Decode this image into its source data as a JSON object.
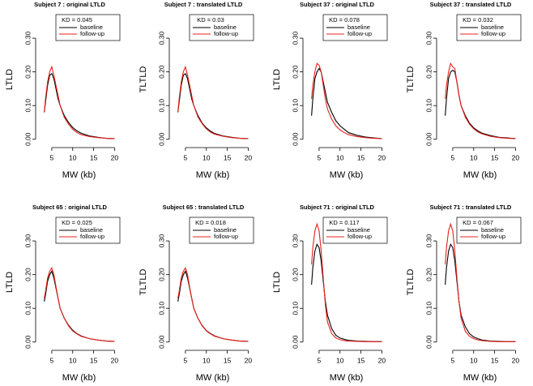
{
  "chart_data": [
    {
      "type": "line",
      "title": "Subject  7 :  original LTLD",
      "xlabel": "MW (kb)",
      "ylabel": "LTLD",
      "annotation": "KD = 0.045",
      "x": [
        3.2,
        3.5,
        4,
        4.5,
        5,
        5.5,
        6,
        6.5,
        7,
        8,
        9,
        10,
        11,
        12,
        14,
        16,
        18,
        20
      ],
      "series": [
        {
          "name": "baseline",
          "color": "#000000",
          "values": [
            0.08,
            0.11,
            0.16,
            0.19,
            0.195,
            0.18,
            0.15,
            0.12,
            0.1,
            0.07,
            0.05,
            0.035,
            0.025,
            0.018,
            0.01,
            0.006,
            0.003,
            0.002
          ]
        },
        {
          "name": "follow-up",
          "color": "#e8201c",
          "values": [
            0.08,
            0.12,
            0.17,
            0.2,
            0.215,
            0.19,
            0.16,
            0.13,
            0.1,
            0.065,
            0.045,
            0.03,
            0.02,
            0.014,
            0.008,
            0.005,
            0.003,
            0.002
          ]
        }
      ],
      "xlim": [
        2.5,
        20.5
      ],
      "ylim": [
        -0.015,
        0.37
      ],
      "xticks": [
        5,
        10,
        15,
        20
      ],
      "yticks": [
        {
          "value": 0,
          "label": "0.00"
        },
        {
          "value": 0.1,
          "label": "0.10"
        },
        {
          "value": 0.2,
          "label": "0.20"
        },
        {
          "value": 0.3,
          "label": "0.30"
        }
      ]
    },
    {
      "type": "line",
      "title": "Subject  7 :  translated LTLD",
      "xlabel": "MW (kb)",
      "ylabel": "TLTLD",
      "annotation": "KD = 0.03",
      "x": [
        3.2,
        3.5,
        4,
        4.5,
        5,
        5.5,
        6,
        6.5,
        7,
        8,
        9,
        10,
        11,
        12,
        14,
        16,
        18,
        20
      ],
      "series": [
        {
          "name": "baseline",
          "color": "#000000",
          "values": [
            0.08,
            0.11,
            0.16,
            0.19,
            0.195,
            0.18,
            0.15,
            0.12,
            0.1,
            0.07,
            0.048,
            0.034,
            0.024,
            0.017,
            0.01,
            0.006,
            0.003,
            0.002
          ]
        },
        {
          "name": "follow-up",
          "color": "#e8201c",
          "values": [
            0.08,
            0.12,
            0.17,
            0.2,
            0.215,
            0.19,
            0.16,
            0.13,
            0.1,
            0.066,
            0.046,
            0.031,
            0.021,
            0.015,
            0.009,
            0.005,
            0.003,
            0.002
          ]
        }
      ],
      "xlim": [
        2.5,
        20.5
      ],
      "ylim": [
        -0.015,
        0.37
      ],
      "xticks": [
        5,
        10,
        15,
        20
      ],
      "yticks": [
        {
          "value": 0,
          "label": "0.00"
        },
        {
          "value": 0.1,
          "label": "0.10"
        },
        {
          "value": 0.2,
          "label": "0.20"
        },
        {
          "value": 0.3,
          "label": "0.30"
        }
      ]
    },
    {
      "type": "line",
      "title": "Subject  37 :  original LTLD",
      "xlabel": "MW (kb)",
      "ylabel": "LTLD",
      "annotation": "KD = 0.078",
      "x": [
        3.2,
        3.5,
        4,
        4.5,
        5,
        5.5,
        6,
        6.5,
        7,
        8,
        9,
        10,
        11,
        12,
        14,
        16,
        18,
        20
      ],
      "series": [
        {
          "name": "baseline",
          "color": "#000000",
          "values": [
            0.07,
            0.12,
            0.18,
            0.2,
            0.21,
            0.2,
            0.17,
            0.14,
            0.11,
            0.08,
            0.055,
            0.04,
            0.03,
            0.02,
            0.012,
            0.007,
            0.004,
            0.002
          ]
        },
        {
          "name": "follow-up",
          "color": "#e8201c",
          "values": [
            0.12,
            0.16,
            0.2,
            0.225,
            0.22,
            0.2,
            0.16,
            0.12,
            0.09,
            0.06,
            0.04,
            0.028,
            0.02,
            0.014,
            0.008,
            0.005,
            0.003,
            0.002
          ]
        }
      ],
      "xlim": [
        2.5,
        20.5
      ],
      "ylim": [
        -0.015,
        0.37
      ],
      "xticks": [
        5,
        10,
        15,
        20
      ],
      "yticks": [
        {
          "value": 0,
          "label": "0.00"
        },
        {
          "value": 0.1,
          "label": "0.10"
        },
        {
          "value": 0.2,
          "label": "0.20"
        },
        {
          "value": 0.3,
          "label": "0.30"
        }
      ]
    },
    {
      "type": "line",
      "title": "Subject  37 :  translated LTLD",
      "xlabel": "MW (kb)",
      "ylabel": "TLTLD",
      "annotation": "KD = 0.032",
      "x": [
        3.2,
        3.5,
        4,
        4.5,
        5,
        5.5,
        6,
        6.5,
        7,
        8,
        9,
        10,
        11,
        12,
        14,
        16,
        18,
        20
      ],
      "series": [
        {
          "name": "baseline",
          "color": "#000000",
          "values": [
            0.07,
            0.12,
            0.18,
            0.2,
            0.205,
            0.2,
            0.17,
            0.13,
            0.1,
            0.07,
            0.048,
            0.034,
            0.025,
            0.018,
            0.011,
            0.006,
            0.004,
            0.002
          ]
        },
        {
          "name": "follow-up",
          "color": "#e8201c",
          "values": [
            0.12,
            0.16,
            0.2,
            0.225,
            0.215,
            0.21,
            0.17,
            0.13,
            0.1,
            0.066,
            0.045,
            0.031,
            0.022,
            0.016,
            0.009,
            0.005,
            0.003,
            0.002
          ]
        }
      ],
      "xlim": [
        2.5,
        20.5
      ],
      "ylim": [
        -0.015,
        0.37
      ],
      "xticks": [
        5,
        10,
        15,
        20
      ],
      "yticks": [
        {
          "value": 0,
          "label": "0.00"
        },
        {
          "value": 0.1,
          "label": "0.10"
        },
        {
          "value": 0.2,
          "label": "0.20"
        },
        {
          "value": 0.3,
          "label": "0.30"
        }
      ]
    },
    {
      "type": "line",
      "title": "Subject  65 :  original LTLD",
      "xlabel": "MW (kb)",
      "ylabel": "LTLD",
      "annotation": "KD = 0.025",
      "x": [
        3.2,
        3.5,
        4,
        4.5,
        5,
        5.5,
        6,
        6.5,
        7,
        8,
        9,
        10,
        11,
        12,
        14,
        16,
        18,
        20
      ],
      "series": [
        {
          "name": "baseline",
          "color": "#000000",
          "values": [
            0.12,
            0.14,
            0.18,
            0.2,
            0.21,
            0.19,
            0.16,
            0.13,
            0.1,
            0.07,
            0.05,
            0.035,
            0.025,
            0.018,
            0.01,
            0.006,
            0.003,
            0.002
          ]
        },
        {
          "name": "follow-up",
          "color": "#e8201c",
          "values": [
            0.13,
            0.15,
            0.19,
            0.21,
            0.22,
            0.2,
            0.165,
            0.13,
            0.1,
            0.07,
            0.048,
            0.033,
            0.024,
            0.017,
            0.01,
            0.006,
            0.003,
            0.002
          ]
        }
      ],
      "xlim": [
        2.5,
        20.5
      ],
      "ylim": [
        -0.015,
        0.37
      ],
      "xticks": [
        5,
        10,
        15,
        20
      ],
      "yticks": [
        {
          "value": 0,
          "label": "0.00"
        },
        {
          "value": 0.1,
          "label": "0.10"
        },
        {
          "value": 0.2,
          "label": "0.20"
        },
        {
          "value": 0.3,
          "label": "0.30"
        }
      ]
    },
    {
      "type": "line",
      "title": "Subject  65 :  translated LTLD",
      "xlabel": "MW (kb)",
      "ylabel": "TLTLD",
      "annotation": "KD = 0.018",
      "x": [
        3.2,
        3.5,
        4,
        4.5,
        5,
        5.5,
        6,
        6.5,
        7,
        8,
        9,
        10,
        11,
        12,
        14,
        16,
        18,
        20
      ],
      "series": [
        {
          "name": "baseline",
          "color": "#000000",
          "values": [
            0.12,
            0.14,
            0.18,
            0.2,
            0.21,
            0.19,
            0.16,
            0.13,
            0.1,
            0.07,
            0.049,
            0.034,
            0.025,
            0.018,
            0.01,
            0.006,
            0.003,
            0.002
          ]
        },
        {
          "name": "follow-up",
          "color": "#e8201c",
          "values": [
            0.13,
            0.15,
            0.19,
            0.21,
            0.22,
            0.2,
            0.163,
            0.13,
            0.1,
            0.07,
            0.048,
            0.033,
            0.024,
            0.017,
            0.01,
            0.006,
            0.003,
            0.002
          ]
        }
      ],
      "xlim": [
        2.5,
        20.5
      ],
      "ylim": [
        -0.015,
        0.37
      ],
      "xticks": [
        5,
        10,
        15,
        20
      ],
      "yticks": [
        {
          "value": 0,
          "label": "0.00"
        },
        {
          "value": 0.1,
          "label": "0.10"
        },
        {
          "value": 0.2,
          "label": "0.20"
        },
        {
          "value": 0.3,
          "label": "0.30"
        }
      ]
    },
    {
      "type": "line",
      "title": "Subject  71 :  original LTLD",
      "xlabel": "MW (kb)",
      "ylabel": "LTLD",
      "annotation": "KD = 0.117",
      "x": [
        3.2,
        3.5,
        4,
        4.5,
        5,
        5.5,
        6,
        6.5,
        7,
        8,
        9,
        10,
        11,
        12,
        14,
        16,
        18,
        20
      ],
      "series": [
        {
          "name": "baseline",
          "color": "#000000",
          "values": [
            0.17,
            0.22,
            0.27,
            0.29,
            0.28,
            0.24,
            0.18,
            0.12,
            0.08,
            0.04,
            0.02,
            0.012,
            0.008,
            0.005,
            0.003,
            0.002,
            0.001,
            0.001
          ]
        },
        {
          "name": "follow-up",
          "color": "#e8201c",
          "values": [
            0.23,
            0.28,
            0.33,
            0.35,
            0.33,
            0.27,
            0.19,
            0.11,
            0.06,
            0.025,
            0.012,
            0.007,
            0.004,
            0.003,
            0.002,
            0.001,
            0.001,
            0.001
          ]
        }
      ],
      "xlim": [
        2.5,
        20.5
      ],
      "ylim": [
        -0.015,
        0.37
      ],
      "xticks": [
        5,
        10,
        15,
        20
      ],
      "yticks": [
        {
          "value": 0,
          "label": "0.00"
        },
        {
          "value": 0.1,
          "label": "0.10"
        },
        {
          "value": 0.2,
          "label": "0.20"
        },
        {
          "value": 0.3,
          "label": "0.30"
        }
      ]
    },
    {
      "type": "line",
      "title": "Subject  71 :  translated LTLD",
      "xlabel": "MW (kb)",
      "ylabel": "TLTLD",
      "annotation": "KD = 0.067",
      "x": [
        3.2,
        3.5,
        4,
        4.5,
        5,
        5.5,
        6,
        6.5,
        7,
        8,
        9,
        10,
        11,
        12,
        14,
        16,
        18,
        20
      ],
      "series": [
        {
          "name": "baseline",
          "color": "#000000",
          "values": [
            0.17,
            0.22,
            0.27,
            0.29,
            0.28,
            0.24,
            0.18,
            0.12,
            0.08,
            0.045,
            0.025,
            0.015,
            0.01,
            0.006,
            0.003,
            0.002,
            0.001,
            0.001
          ]
        },
        {
          "name": "follow-up",
          "color": "#e8201c",
          "values": [
            0.23,
            0.28,
            0.33,
            0.35,
            0.33,
            0.27,
            0.19,
            0.12,
            0.07,
            0.032,
            0.017,
            0.01,
            0.006,
            0.004,
            0.002,
            0.001,
            0.001,
            0.001
          ]
        }
      ],
      "xlim": [
        2.5,
        20.5
      ],
      "ylim": [
        -0.015,
        0.37
      ],
      "xticks": [
        5,
        10,
        15,
        20
      ],
      "yticks": [
        {
          "value": 0,
          "label": "0.00"
        },
        {
          "value": 0.1,
          "label": "0.10"
        },
        {
          "value": 0.2,
          "label": "0.20"
        },
        {
          "value": 0.3,
          "label": "0.30"
        }
      ]
    }
  ]
}
